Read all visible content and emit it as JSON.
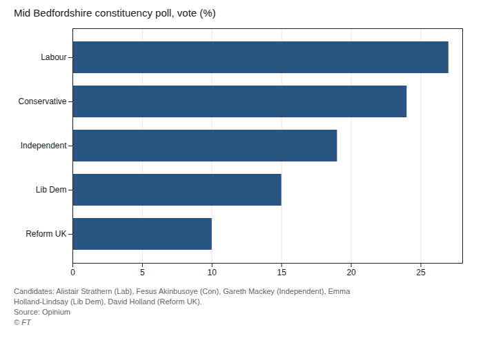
{
  "chart_data": {
    "type": "bar",
    "orientation": "horizontal",
    "title": "Mid Bedfordshire constituency poll, vote (%)",
    "categories": [
      "Reform UK",
      "Lib Dem",
      "Independent",
      "Conservative",
      "Labour"
    ],
    "values": [
      10,
      15,
      19,
      24,
      27
    ],
    "color": "#2a5580",
    "xlim": [
      0,
      28
    ],
    "xticks": [
      0,
      5,
      10,
      15,
      20,
      25
    ],
    "grid": true,
    "footnotes": [
      "Candidates: Alistair Strathern (Lab), Fesus Akinbusoye (Con), Gareth Mackey (Independent), Emma",
      "Holland-Lindsay (Lib Dem), David Holland (Reform UK).",
      "Source: Opinium",
      "© FT"
    ]
  }
}
